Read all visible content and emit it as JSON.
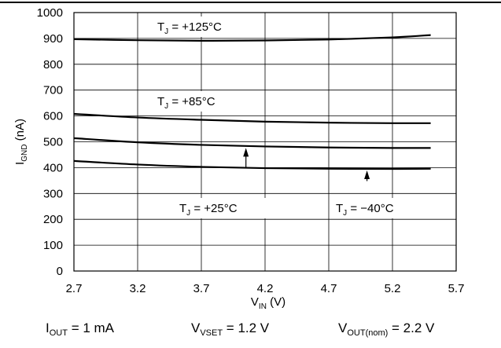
{
  "chart_data": {
    "type": "line",
    "title": "",
    "xlabel": "V",
    "xlabel_sub": "IN",
    "xlabel_unit": " (V)",
    "ylabel": "I",
    "ylabel_sub": "GND",
    "ylabel_unit": " (nA)",
    "xlim": [
      2.7,
      5.7
    ],
    "ylim": [
      0,
      1000
    ],
    "xticks": [
      2.7,
      3.2,
      3.7,
      4.2,
      4.7,
      5.2,
      5.7
    ],
    "xtick_labels": [
      "2.7",
      "3.2",
      "3.7",
      "4.2",
      "4.7",
      "5.2",
      "5.7"
    ],
    "yticks": [
      0,
      100,
      200,
      300,
      400,
      500,
      600,
      700,
      800,
      900,
      1000
    ],
    "ytick_labels": [
      "0",
      "100",
      "200",
      "300",
      "400",
      "500",
      "600",
      "700",
      "800",
      "900",
      "1000"
    ],
    "grid": true,
    "legend": "none",
    "series": [
      {
        "label_main": "T",
        "label_sub": "J",
        "label_rest": " = +125°C",
        "x": [
          2.7,
          3.2,
          3.7,
          4.2,
          4.7,
          5.2,
          5.5
        ],
        "y": [
          897,
          893,
          891,
          892,
          896,
          904,
          913
        ]
      },
      {
        "label_main": "T",
        "label_sub": "J",
        "label_rest": " = +85°C",
        "x": [
          2.7,
          3.2,
          3.7,
          4.2,
          4.7,
          5.2,
          5.5
        ],
        "y": [
          608,
          594,
          585,
          578,
          574,
          572,
          572
        ]
      },
      {
        "label_main": "T",
        "label_sub": "J",
        "label_rest": " = +25°C",
        "x": [
          2.7,
          3.2,
          3.7,
          4.2,
          4.7,
          5.2,
          5.5
        ],
        "y": [
          514,
          498,
          488,
          482,
          478,
          476,
          476
        ]
      },
      {
        "label_main": "T",
        "label_sub": "J",
        "label_rest": " = −40°C",
        "x": [
          2.7,
          3.2,
          3.7,
          4.2,
          4.7,
          5.2,
          5.5
        ],
        "y": [
          426,
          412,
          403,
          398,
          396,
          395,
          396
        ]
      }
    ],
    "annotations": [
      {
        "series": 2,
        "text_at": [
          4.05,
          250
        ],
        "arrow_from": [
          4.05,
          400
        ],
        "arrow_to": [
          4.05,
          482
        ]
      },
      {
        "series": 3,
        "text_at": [
          5.0,
          250
        ],
        "arrow_from": [
          5.0,
          348
        ],
        "arrow_to": [
          5.0,
          395
        ]
      }
    ]
  },
  "footer": {
    "iout_main": "I",
    "iout_sub": "OUT",
    "iout_rest": " = 1 mA",
    "vvset_main": "V",
    "vvset_sub": "VSET",
    "vvset_rest": " = 1.2 V",
    "voutnom_main": "V",
    "voutnom_sub": "OUT(nom)",
    "voutnom_rest": " = 2.2 V"
  }
}
